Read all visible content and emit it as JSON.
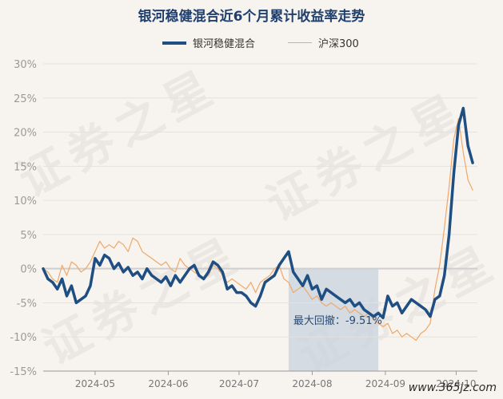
{
  "chart_data": {
    "type": "line",
    "title": "银河稳健混合近6个月累计收益率走势",
    "ylim": [
      -15,
      30
    ],
    "yticks": [
      "30%",
      "25%",
      "20%",
      "15%",
      "10%",
      "5%",
      "0%",
      "-5%",
      "-10%",
      "-15%"
    ],
    "yticks_values": [
      30,
      25,
      20,
      15,
      10,
      5,
      0,
      -5,
      -10,
      -15
    ],
    "xlim": [
      "2024-04-09",
      "2024-10-10"
    ],
    "xticks": [
      "2024-05",
      "2024-06",
      "2024-07",
      "2024-08",
      "2024-09",
      "2024-10"
    ],
    "xticks_dates": [
      "2024-05-01",
      "2024-06-01",
      "2024-07-01",
      "2024-08-01",
      "2024-09-01",
      "2024-10-01"
    ],
    "grid": "horizontal",
    "legend_position": "top",
    "series": [
      {
        "name": "银河稳健混合",
        "color": "#1f4e83",
        "x": [
          "2024-04-09",
          "2024-04-11",
          "2024-04-13",
          "2024-04-15",
          "2024-04-17",
          "2024-04-19",
          "2024-04-21",
          "2024-04-23",
          "2024-04-25",
          "2024-04-27",
          "2024-04-29",
          "2024-05-01",
          "2024-05-03",
          "2024-05-05",
          "2024-05-07",
          "2024-05-09",
          "2024-05-11",
          "2024-05-13",
          "2024-05-15",
          "2024-05-17",
          "2024-05-19",
          "2024-05-21",
          "2024-05-23",
          "2024-05-25",
          "2024-05-27",
          "2024-05-29",
          "2024-05-31",
          "2024-06-02",
          "2024-06-04",
          "2024-06-06",
          "2024-06-08",
          "2024-06-10",
          "2024-06-12",
          "2024-06-14",
          "2024-06-16",
          "2024-06-18",
          "2024-06-20",
          "2024-06-22",
          "2024-06-24",
          "2024-06-26",
          "2024-06-28",
          "2024-06-30",
          "2024-07-02",
          "2024-07-04",
          "2024-07-06",
          "2024-07-08",
          "2024-07-10",
          "2024-07-12",
          "2024-07-14",
          "2024-07-16",
          "2024-07-18",
          "2024-07-20",
          "2024-07-22",
          "2024-07-24",
          "2024-07-26",
          "2024-07-28",
          "2024-07-30",
          "2024-08-01",
          "2024-08-03",
          "2024-08-05",
          "2024-08-07",
          "2024-08-09",
          "2024-08-11",
          "2024-08-13",
          "2024-08-15",
          "2024-08-17",
          "2024-08-19",
          "2024-08-21",
          "2024-08-23",
          "2024-08-25",
          "2024-08-27",
          "2024-08-29",
          "2024-08-31",
          "2024-09-02",
          "2024-09-04",
          "2024-09-06",
          "2024-09-08",
          "2024-09-10",
          "2024-09-12",
          "2024-09-14",
          "2024-09-16",
          "2024-09-18",
          "2024-09-20",
          "2024-09-22",
          "2024-09-24",
          "2024-09-26",
          "2024-09-28",
          "2024-09-30",
          "2024-10-02",
          "2024-10-04",
          "2024-10-06",
          "2024-10-08"
        ],
        "values": [
          0.0,
          -1.5,
          -2.0,
          -3.0,
          -1.5,
          -4.0,
          -2.5,
          -5.0,
          -4.5,
          -4.0,
          -2.5,
          1.5,
          0.5,
          2.0,
          1.5,
          0.0,
          0.8,
          -0.5,
          0.2,
          -1.0,
          -0.5,
          -1.5,
          0.0,
          -1.0,
          -1.5,
          -2.0,
          -1.2,
          -2.5,
          -1.0,
          -2.0,
          -1.0,
          0.0,
          0.5,
          -1.0,
          -1.5,
          -0.5,
          1.0,
          0.5,
          -0.5,
          -3.0,
          -2.5,
          -3.5,
          -3.5,
          -4.0,
          -5.0,
          -5.5,
          -4.0,
          -2.0,
          -1.5,
          -1.0,
          0.5,
          1.5,
          2.5,
          -0.5,
          -1.5,
          -2.5,
          -1.0,
          -3.0,
          -2.5,
          -4.5,
          -3.0,
          -3.5,
          -4.0,
          -4.5,
          -5.0,
          -4.5,
          -5.5,
          -5.0,
          -6.0,
          -6.5,
          -7.0,
          -6.5,
          -7.2,
          -4.0,
          -5.5,
          -5.0,
          -6.5,
          -5.5,
          -4.5,
          -5.0,
          -5.5,
          -6.0,
          -7.0,
          -4.5,
          -4.0,
          -1.0,
          5.0,
          14.0,
          21.0,
          23.5,
          18.0,
          15.5
        ]
      },
      {
        "name": "沪深300",
        "color": "#f0a868",
        "x": [
          "2024-04-09",
          "2024-04-11",
          "2024-04-13",
          "2024-04-15",
          "2024-04-17",
          "2024-04-19",
          "2024-04-21",
          "2024-04-23",
          "2024-04-25",
          "2024-04-27",
          "2024-04-29",
          "2024-05-01",
          "2024-05-03",
          "2024-05-05",
          "2024-05-07",
          "2024-05-09",
          "2024-05-11",
          "2024-05-13",
          "2024-05-15",
          "2024-05-17",
          "2024-05-19",
          "2024-05-21",
          "2024-05-23",
          "2024-05-25",
          "2024-05-27",
          "2024-05-29",
          "2024-05-31",
          "2024-06-02",
          "2024-06-04",
          "2024-06-06",
          "2024-06-08",
          "2024-06-10",
          "2024-06-12",
          "2024-06-14",
          "2024-06-16",
          "2024-06-18",
          "2024-06-20",
          "2024-06-22",
          "2024-06-24",
          "2024-06-26",
          "2024-06-28",
          "2024-06-30",
          "2024-07-02",
          "2024-07-04",
          "2024-07-06",
          "2024-07-08",
          "2024-07-10",
          "2024-07-12",
          "2024-07-14",
          "2024-07-16",
          "2024-07-18",
          "2024-07-20",
          "2024-07-22",
          "2024-07-24",
          "2024-07-26",
          "2024-07-28",
          "2024-07-30",
          "2024-08-01",
          "2024-08-03",
          "2024-08-05",
          "2024-08-07",
          "2024-08-09",
          "2024-08-11",
          "2024-08-13",
          "2024-08-15",
          "2024-08-17",
          "2024-08-19",
          "2024-08-21",
          "2024-08-23",
          "2024-08-25",
          "2024-08-27",
          "2024-08-29",
          "2024-08-31",
          "2024-09-02",
          "2024-09-04",
          "2024-09-06",
          "2024-09-08",
          "2024-09-10",
          "2024-09-12",
          "2024-09-14",
          "2024-09-16",
          "2024-09-18",
          "2024-09-20",
          "2024-09-22",
          "2024-09-24",
          "2024-09-26",
          "2024-09-28",
          "2024-09-30",
          "2024-10-02",
          "2024-10-04",
          "2024-10-06",
          "2024-10-08"
        ],
        "values": [
          0.0,
          -0.5,
          -1.5,
          -2.0,
          0.5,
          -1.0,
          1.0,
          0.5,
          -0.5,
          0.0,
          1.0,
          2.5,
          4.0,
          3.0,
          3.5,
          3.0,
          4.0,
          3.5,
          2.5,
          4.5,
          4.0,
          2.5,
          2.0,
          1.5,
          1.0,
          0.5,
          1.0,
          0.0,
          -0.5,
          1.5,
          0.5,
          0.0,
          -0.5,
          -1.0,
          -1.5,
          -1.0,
          0.5,
          0.0,
          -1.0,
          -2.0,
          -1.5,
          -2.0,
          -2.5,
          -3.0,
          -2.0,
          -3.5,
          -2.0,
          -1.5,
          -1.0,
          0.0,
          0.5,
          -1.5,
          -2.0,
          -3.5,
          -3.0,
          -2.5,
          -3.5,
          -4.5,
          -4.0,
          -5.0,
          -5.5,
          -5.0,
          -5.5,
          -6.0,
          -5.5,
          -6.5,
          -6.0,
          -6.5,
          -7.0,
          -6.5,
          -7.5,
          -8.0,
          -8.5,
          -8.0,
          -9.5,
          -9.0,
          -10.0,
          -9.5,
          -10.0,
          -10.5,
          -9.5,
          -9.0,
          -8.0,
          -3.0,
          0.5,
          6.0,
          12.0,
          19.0,
          22.0,
          17.0,
          13.0,
          11.5
        ]
      }
    ],
    "annotation": {
      "label": "最大回撤：-9.51%",
      "start": "2024-07-22",
      "end": "2024-08-29"
    }
  },
  "watermark": {
    "text": "证券之星",
    "site": "www.365jz.com"
  }
}
